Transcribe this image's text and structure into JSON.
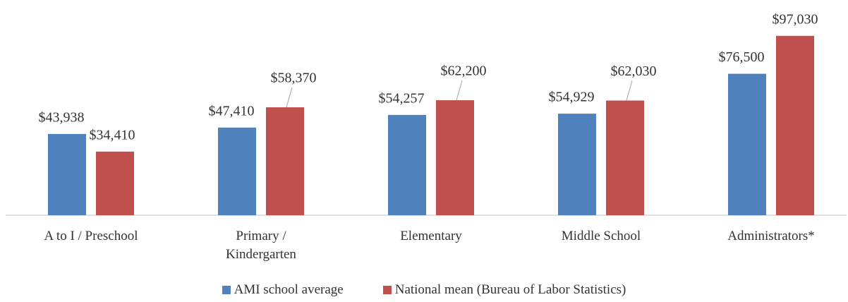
{
  "chart_data": {
    "type": "bar",
    "categories": [
      "A to I / Preschool",
      "Primary /\nKindergarten",
      "Elementary",
      "Middle School",
      "Administrators*"
    ],
    "series": [
      {
        "name": "AMI school average",
        "color": "#4f81bd",
        "values": [
          43938,
          47410,
          54257,
          54929,
          76500
        ],
        "value_labels": [
          "$43,938",
          "$47,410",
          "$54,257",
          "$54,929",
          "$76,500"
        ]
      },
      {
        "name": "National mean (Bureau of Labor Statistics)",
        "color": "#c0504d",
        "values": [
          34410,
          58370,
          62200,
          62030,
          97030
        ],
        "value_labels": [
          "$34,410",
          "$58,370",
          "$62,200",
          "$62,030",
          "$97,030"
        ]
      }
    ],
    "ylim": [
      0,
      100000
    ],
    "legend": "bottom"
  }
}
